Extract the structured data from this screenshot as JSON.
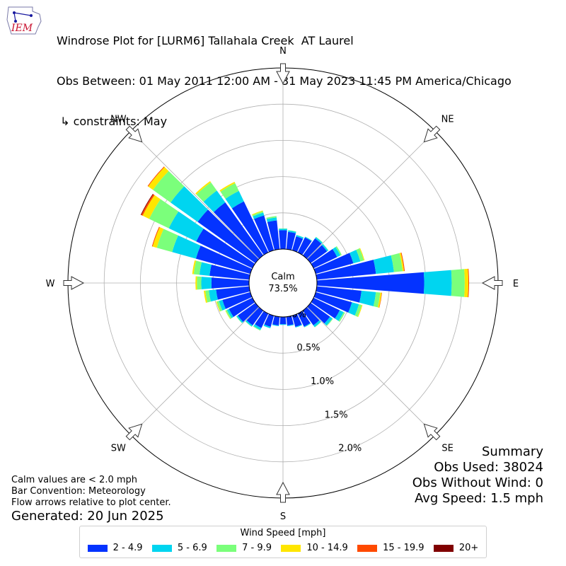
{
  "header": {
    "title_line1": "Windrose Plot for [LURM6] Tallahala Creek  AT Laurel",
    "title_line2": "Obs Between: 01 May 2011 12:00 AM - 31 May 2023 11:45 PM America/Chicago",
    "title_line3": " ↳ constraints: May",
    "logo_text": "IEM"
  },
  "notes": {
    "calm_note": "Calm values are < 2.0 mph",
    "bar_convention": "Bar Convention: Meteorology",
    "flow_arrows": "Flow arrows relative to plot center.",
    "generated": "Generated: 20 Jun 2025"
  },
  "summary": {
    "heading": "Summary",
    "obs_used": "Obs Used: 38024",
    "obs_without_wind": "Obs Without Wind: 0",
    "avg_speed": "Avg Speed: 1.5 mph"
  },
  "calm": {
    "label": "Calm",
    "value": "73.5%"
  },
  "legend": {
    "title": "Wind Speed [mph]",
    "items": [
      {
        "label": "2 - 4.9",
        "color": "#0433ff"
      },
      {
        "label": "5 - 6.9",
        "color": "#00d5f0"
      },
      {
        "label": "7 - 9.9",
        "color": "#7bff7b"
      },
      {
        "label": "10 - 14.9",
        "color": "#ffe600"
      },
      {
        "label": "15 - 19.9",
        "color": "#ff4a00"
      },
      {
        "label": "20+",
        "color": "#800000"
      }
    ]
  },
  "chart_data": {
    "type": "windrose",
    "direction_labels": [
      "N",
      "NE",
      "E",
      "SE",
      "S",
      "SW",
      "W",
      "NW"
    ],
    "radial_ticks": [
      "0.0%",
      "0.5%",
      "1.0%",
      "1.5%",
      "2.0%"
    ],
    "radial_tick_values": [
      0.0,
      0.5,
      1.0,
      1.5,
      2.0
    ],
    "rmax": 2.5,
    "bin_width_deg": 10,
    "directions_deg": [
      0,
      10,
      20,
      30,
      40,
      50,
      60,
      70,
      80,
      90,
      100,
      110,
      120,
      130,
      140,
      150,
      160,
      170,
      180,
      190,
      200,
      210,
      220,
      230,
      240,
      250,
      260,
      270,
      280,
      290,
      300,
      310,
      320,
      330,
      340,
      350
    ],
    "series": [
      {
        "name": "2 - 4.9",
        "values": [
          0.26,
          0.24,
          0.2,
          0.23,
          0.29,
          0.28,
          0.36,
          0.54,
          0.82,
          1.48,
          0.62,
          0.52,
          0.4,
          0.33,
          0.25,
          0.2,
          0.16,
          0.12,
          0.1,
          0.12,
          0.16,
          0.22,
          0.25,
          0.3,
          0.36,
          0.4,
          0.46,
          0.52,
          0.55,
          0.78,
          0.86,
          0.98,
          0.9,
          0.78,
          0.5,
          0.4
        ]
      },
      {
        "name": "5 - 6.9",
        "values": [
          0.02,
          0.02,
          0.02,
          0.01,
          0.02,
          0.02,
          0.05,
          0.1,
          0.25,
          0.38,
          0.2,
          0.1,
          0.06,
          0.04,
          0.03,
          0.01,
          0.01,
          0.01,
          0.01,
          0.01,
          0.02,
          0.03,
          0.02,
          0.02,
          0.03,
          0.05,
          0.1,
          0.14,
          0.14,
          0.34,
          0.42,
          0.46,
          0.2,
          0.16,
          0.04,
          0.04
        ]
      },
      {
        "name": "7 - 9.9",
        "values": [
          0.005,
          0.005,
          0.002,
          0.002,
          0.005,
          0.005,
          0.02,
          0.05,
          0.12,
          0.18,
          0.06,
          0.04,
          0.02,
          0.01,
          0.005,
          0.002,
          0,
          0,
          0,
          0,
          0,
          0.01,
          0.005,
          0.005,
          0.02,
          0.03,
          0.05,
          0.06,
          0.08,
          0.22,
          0.3,
          0.3,
          0.14,
          0.12,
          0.02,
          0.02
        ]
      },
      {
        "name": "10 - 14.9",
        "values": [
          0,
          0,
          0,
          0,
          0,
          0,
          0,
          0.01,
          0.02,
          0.05,
          0.02,
          0.01,
          0,
          0,
          0,
          0,
          0,
          0,
          0,
          0,
          0,
          0,
          0,
          0,
          0.005,
          0.01,
          0.02,
          0.02,
          0.02,
          0.06,
          0.1,
          0.08,
          0.02,
          0.02,
          0.01,
          0
        ]
      },
      {
        "name": "15 - 19.9",
        "values": [
          0,
          0,
          0,
          0,
          0,
          0,
          0,
          0,
          0.01,
          0.01,
          0.005,
          0,
          0,
          0,
          0,
          0,
          0,
          0,
          0,
          0,
          0,
          0,
          0,
          0,
          0,
          0,
          0,
          0,
          0,
          0.01,
          0.02,
          0.01,
          0,
          0,
          0,
          0
        ]
      },
      {
        "name": "20+",
        "values": [
          0,
          0,
          0,
          0,
          0,
          0,
          0,
          0,
          0,
          0,
          0,
          0,
          0,
          0,
          0,
          0,
          0,
          0,
          0,
          0,
          0,
          0,
          0,
          0,
          0,
          0,
          0,
          0,
          0,
          0,
          0.01,
          0,
          0,
          0,
          0,
          0
        ]
      }
    ]
  }
}
